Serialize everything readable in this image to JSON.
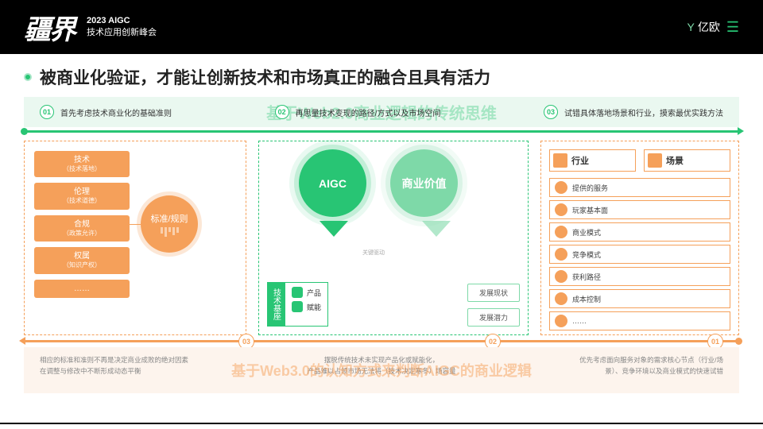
{
  "header": {
    "logo": "疆界",
    "year": "2023 AIGC",
    "subtitle": "技术应用创新峰会",
    "brand": "亿欧"
  },
  "title": "被商业化验证，才能让创新技术和市场真正的融合且具有活力",
  "steps": {
    "s1": {
      "num": "01",
      "text": "首先考虑技术商业化的基础准则"
    },
    "s2": {
      "num": "02",
      "text": "再思量技术变现的路径/方式以及市场空间"
    },
    "s3": {
      "num": "03",
      "text": "试错具体落地场景和行业，摸索最优实践方法"
    },
    "watermark": "基于Web2.0商业逻辑的传统思维"
  },
  "col1": {
    "items": [
      {
        "t": "技术",
        "s": "（技术落地）"
      },
      {
        "t": "伦理",
        "s": "（技术道德）"
      },
      {
        "t": "合规",
        "s": "（政策允许）"
      },
      {
        "t": "权属",
        "s": "（知识产权）"
      },
      {
        "t": "……",
        "s": ""
      }
    ],
    "circle": "标准/规则"
  },
  "col2": {
    "aigc": "AIGC",
    "value": "商业价值",
    "base_label": "技术基座",
    "base_items": [
      "产品",
      "赋能"
    ],
    "dev": [
      "发展现状",
      "发展潜力"
    ],
    "link": "关键驱动"
  },
  "col3": {
    "tags": [
      "行业",
      "场景"
    ],
    "list": [
      "提供的服务",
      "玩家基本面",
      "商业模式",
      "竞争模式",
      "获利路径",
      "成本控制",
      "……"
    ]
  },
  "onums": {
    "n1": "03",
    "n2": "02",
    "n3": "01"
  },
  "bottom": {
    "t1a": "相应的标准和准则不再是决定商业成败的绝对因素",
    "t1b": "在调整与修改中不断形成动态平衡",
    "t2a": "摆脱传统技术未实现产品化或赋能化，",
    "t2b": "产品难以占领市场无法将（技术决定寒冬）场容量",
    "t3a": "优先考虑面向服务对象的需求核心节点（行业/场景）、竞争环境以及商业模式的快速试错",
    "watermark": "基于Web3.0的认知方式来判断AIGC的商业逻辑"
  },
  "colors": {
    "green": "#28c574",
    "orange": "#f5a05a"
  }
}
